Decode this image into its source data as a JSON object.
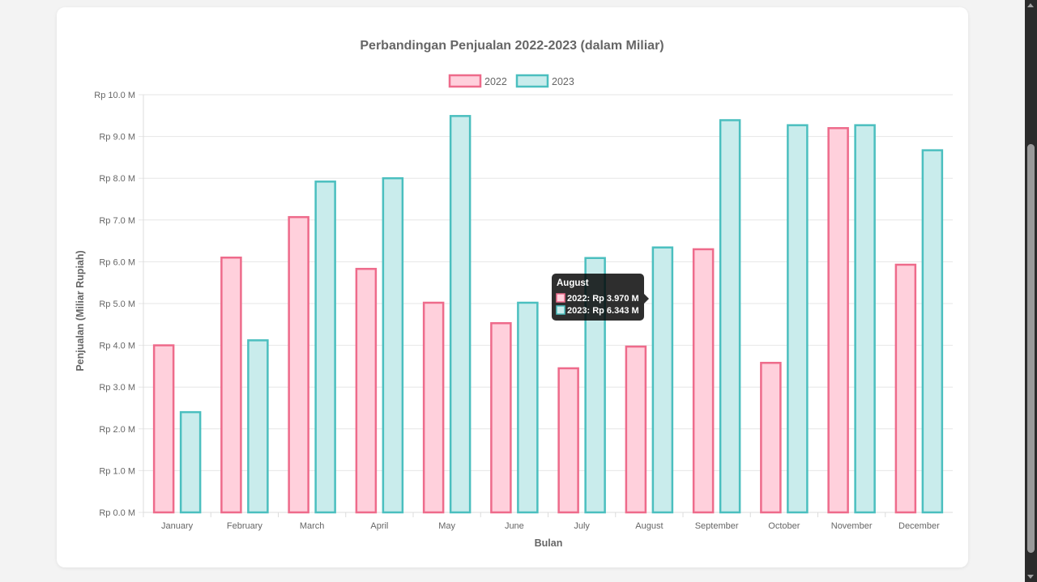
{
  "chart_data": {
    "type": "bar",
    "title": "Perbandingan Penjualan 2022-2023 (dalam Miliar)",
    "xlabel": "Bulan",
    "ylabel": "Penjualan (Miliar Rupiah)",
    "ylim": [
      0,
      10
    ],
    "yticks": [
      0,
      1,
      2,
      3,
      4,
      5,
      6,
      7,
      8,
      9,
      10
    ],
    "ytick_labels": [
      "Rp 0.0 M",
      "Rp 1.0 M",
      "Rp 2.0 M",
      "Rp 3.0 M",
      "Rp 4.0 M",
      "Rp 5.0 M",
      "Rp 6.0 M",
      "Rp 7.0 M",
      "Rp 8.0 M",
      "Rp 9.0 M",
      "Rp 10.0 M"
    ],
    "categories": [
      "January",
      "February",
      "March",
      "April",
      "May",
      "June",
      "July",
      "August",
      "September",
      "October",
      "November",
      "December"
    ],
    "grid": true,
    "legend_position": "top",
    "series": [
      {
        "name": "2022",
        "values": [
          4.0,
          6.1,
          7.07,
          5.83,
          5.02,
          4.53,
          3.45,
          3.97,
          6.3,
          3.58,
          9.2,
          5.93
        ],
        "fill": "#ffd0dc",
        "stroke": "#ee6b8b"
      },
      {
        "name": "2023",
        "values": [
          2.4,
          4.12,
          7.92,
          8.0,
          9.49,
          5.02,
          6.09,
          6.343,
          9.39,
          9.27,
          9.27,
          8.67
        ],
        "fill": "#c9ecec",
        "stroke": "#4bbfbf"
      }
    ],
    "tooltip": {
      "title": "August",
      "lines": [
        "2022: Rp 3.970 M",
        "2023: Rp 6.343 M"
      ]
    }
  }
}
